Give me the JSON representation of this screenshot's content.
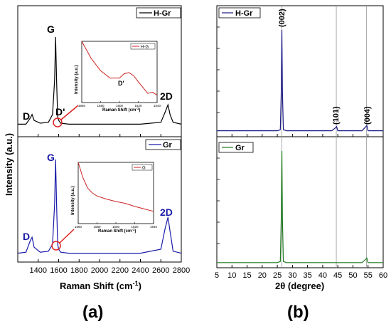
{
  "chart_data": [
    {
      "panel_label": "(a)",
      "type": "line",
      "xlabel": "Raman Shift (cm",
      "xlabel_sup": "-1",
      "xlabel_close": ")",
      "ylabel": "Intensity (a.u.)",
      "x_ticks": [
        "1400",
        "1600",
        "1800",
        "2000",
        "2200",
        "2400",
        "2600",
        "2800"
      ],
      "xlim": [
        1200,
        2800
      ],
      "subplots": [
        {
          "legend": "H-Gr",
          "color": "#000000",
          "series": {
            "name": "H-Gr",
            "x": [
              1200,
              1280,
              1320,
              1340,
              1360,
              1420,
              1500,
              1540,
              1560,
              1570,
              1580,
              1590,
              1600,
              1620,
              1700,
              1800,
              2000,
              2200,
              2400,
              2600,
              2640,
              2670,
              2690,
              2720,
              2800
            ],
            "y": [
              0.1,
              0.1,
              0.16,
              0.2,
              0.14,
              0.11,
              0.12,
              0.2,
              0.55,
              1.0,
              0.55,
              0.18,
              0.14,
              0.11,
              0.1,
              0.1,
              0.1,
              0.1,
              0.1,
              0.12,
              0.22,
              0.3,
              0.2,
              0.12,
              0.1
            ]
          },
          "peak_labels": [
            "D",
            "G",
            "D'",
            "2D"
          ],
          "inset": {
            "legend": "H-G",
            "color": "#cc2222",
            "xlabel": "Raman Shift (cm",
            "xlabel_sup": "-1",
            "xlabel_close": ")",
            "ylabel": "Intensity (a.u.)",
            "annotation": "D'",
            "x_ticks": [
              "1560",
              "1580",
              "1600",
              "1620",
              "1640"
            ],
            "x": [
              1560,
              1570,
              1580,
              1590,
              1600,
              1605,
              1610,
              1615,
              1620,
              1630,
              1635,
              1640
            ],
            "y": [
              1.0,
              0.72,
              0.52,
              0.4,
              0.4,
              0.47,
              0.49,
              0.44,
              0.34,
              0.15,
              0.17,
              0.12
            ]
          }
        },
        {
          "legend": "Gr",
          "color": "#1a1aaa",
          "series": {
            "name": "Gr",
            "x": [
              1200,
              1280,
              1320,
              1340,
              1360,
              1420,
              1500,
              1540,
              1560,
              1570,
              1580,
              1590,
              1600,
              1620,
              1700,
              1800,
              2000,
              2200,
              2400,
              2600,
              2640,
              2670,
              2690,
              2720,
              2800
            ],
            "y": [
              0.06,
              0.07,
              0.18,
              0.22,
              0.12,
              0.07,
              0.08,
              0.15,
              0.55,
              1.0,
              0.55,
              0.15,
              0.1,
              0.07,
              0.06,
              0.06,
              0.06,
              0.06,
              0.06,
              0.1,
              0.3,
              0.42,
              0.28,
              0.08,
              0.06
            ]
          },
          "peak_labels": [
            "D",
            "G",
            "2D"
          ],
          "inset": {
            "legend": "G",
            "color": "#cc2222",
            "xlabel": "Raman Shift (cm",
            "xlabel_sup": "-1",
            "xlabel_close": ")",
            "ylabel": "Intensity (a.u.)",
            "x_ticks": [
              "1560",
              "1580",
              "1600",
              "1620",
              "1640"
            ],
            "x": [
              1560,
              1565,
              1570,
              1575,
              1580,
              1590,
              1600,
              1610,
              1620,
              1630,
              1640
            ],
            "y": [
              1.0,
              0.75,
              0.58,
              0.5,
              0.45,
              0.4,
              0.36,
              0.33,
              0.28,
              0.24,
              0.2
            ]
          }
        }
      ]
    },
    {
      "panel_label": "(b)",
      "type": "line",
      "xlabel": "2θ (degree)",
      "x_ticks": [
        "5",
        "10",
        "15",
        "20",
        "25",
        "30",
        "35",
        "40",
        "45",
        "50",
        "55",
        "60"
      ],
      "xlim": [
        5,
        60
      ],
      "reference_lines_x": [
        26.5,
        44.5,
        54.5
      ],
      "subplots": [
        {
          "legend": "H-Gr",
          "color": "#1a1a88",
          "series": {
            "name": "H-Gr",
            "x": [
              5,
              10,
              20,
              25,
              26,
              26.3,
              26.5,
              26.7,
              27,
              28,
              35,
              43,
              44.3,
              44.6,
              45,
              53,
              54.3,
              54.6,
              55,
              60
            ],
            "y": [
              0.03,
              0.03,
              0.03,
              0.03,
              0.04,
              0.4,
              1.0,
              0.4,
              0.04,
              0.03,
              0.03,
              0.03,
              0.06,
              0.07,
              0.03,
              0.03,
              0.07,
              0.08,
              0.03,
              0.03
            ]
          },
          "peak_labels": [
            "(002)",
            "(101)",
            "(004)"
          ]
        },
        {
          "legend": "Gr",
          "color": "#1e7a1e",
          "series": {
            "name": "Gr",
            "x": [
              5,
              10,
              20,
              25,
              26,
              26.3,
              26.5,
              26.7,
              27,
              28,
              35,
              44,
              45,
              53,
              54.3,
              54.6,
              55,
              60
            ],
            "y": [
              0.02,
              0.02,
              0.02,
              0.02,
              0.03,
              0.4,
              1.0,
              0.4,
              0.03,
              0.02,
              0.02,
              0.02,
              0.02,
              0.02,
              0.05,
              0.06,
              0.02,
              0.02
            ]
          }
        }
      ]
    }
  ]
}
